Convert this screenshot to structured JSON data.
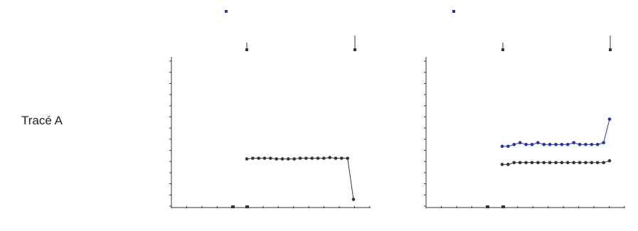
{
  "row_label": "Tracé A",
  "chart_data": [
    {
      "type": "line",
      "title": "",
      "xlabel": "",
      "ylabel": "",
      "legend_position": "top-center",
      "legend_marker_color": "#3a3a8c",
      "ylim": [
        -25,
        190
      ],
      "x": [
        0,
        1,
        2,
        3,
        4,
        5,
        6,
        7,
        8,
        9,
        10,
        11,
        12,
        13,
        14,
        15,
        16,
        17,
        18
      ],
      "series": [
        {
          "name": "",
          "color": "#333333",
          "values": [
            45,
            46,
            46,
            46,
            46,
            45,
            45,
            45,
            45,
            46,
            46,
            46,
            46,
            46,
            47,
            46,
            46,
            46,
            -15
          ]
        }
      ]
    },
    {
      "type": "line",
      "title": "",
      "xlabel": "",
      "ylabel": "",
      "legend_position": "top-center",
      "legend_marker_color": "#2233aa",
      "ylim": [
        -1.5,
        6.5
      ],
      "x": [
        0,
        1,
        2,
        3,
        4,
        5,
        6,
        7,
        8,
        9,
        10,
        11,
        12,
        13,
        14,
        15,
        16,
        17,
        18
      ],
      "series": [
        {
          "name": "",
          "color": "#2233aa",
          "values": [
            1.8,
            1.8,
            1.9,
            2.0,
            1.9,
            1.9,
            2.0,
            1.9,
            1.9,
            1.9,
            1.9,
            1.9,
            2.0,
            1.9,
            1.9,
            1.9,
            1.9,
            2.0,
            3.3
          ]
        },
        {
          "name": "",
          "color": "#333333",
          "values": [
            0.8,
            0.8,
            0.9,
            0.9,
            0.9,
            0.9,
            0.9,
            0.9,
            0.9,
            0.9,
            0.9,
            0.9,
            0.9,
            0.9,
            0.9,
            0.9,
            0.9,
            0.9,
            1.0
          ]
        }
      ]
    }
  ]
}
